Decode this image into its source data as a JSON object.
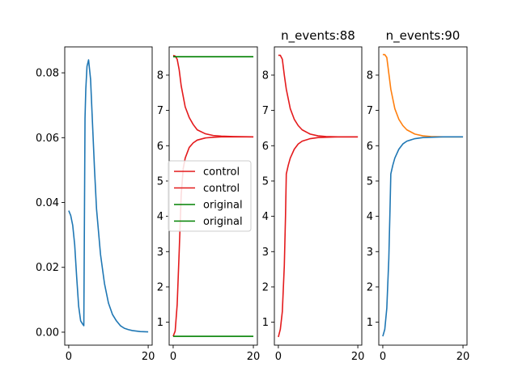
{
  "chart_data": [
    {
      "type": "line",
      "title": "",
      "xlim": [
        -1,
        21
      ],
      "ylim": [
        -0.004,
        0.088
      ],
      "xticks": [
        0,
        20
      ],
      "yticks": [
        0.0,
        0.02,
        0.04,
        0.06,
        0.08
      ],
      "ytick_labels": [
        "0.00",
        "0.02",
        "0.04",
        "0.06",
        "0.08"
      ],
      "series": [
        {
          "color": "#1f77b4",
          "x": [
            0,
            0.5,
            1,
            1.5,
            2,
            2.5,
            3,
            3.5,
            3.8,
            4,
            4.1,
            4.3,
            4.6,
            5,
            5.5,
            6,
            6.5,
            7,
            8,
            9,
            10,
            11,
            12,
            13,
            14,
            15,
            16,
            18,
            20
          ],
          "y": [
            0.0375,
            0.036,
            0.033,
            0.027,
            0.017,
            0.008,
            0.0035,
            0.0025,
            0.002,
            0.045,
            0.066,
            0.075,
            0.082,
            0.084,
            0.078,
            0.064,
            0.05,
            0.038,
            0.024,
            0.015,
            0.009,
            0.0055,
            0.0035,
            0.002,
            0.0012,
            0.0008,
            0.0005,
            0.0002,
            0.0001
          ]
        }
      ]
    },
    {
      "type": "line",
      "title": "",
      "xlim": [
        -1,
        21
      ],
      "ylim": [
        0.35,
        8.8
      ],
      "xticks": [
        0,
        20
      ],
      "yticks": [
        1,
        2,
        3,
        4,
        5,
        6,
        7,
        8
      ],
      "ytick_labels": [
        "1",
        "2",
        "3",
        "4",
        "5",
        "6",
        "7",
        "8"
      ],
      "legend": {
        "placement": "center-left",
        "entries": [
          {
            "label": "control",
            "color": "#e41a1c"
          },
          {
            "label": "control",
            "color": "#e41a1c"
          },
          {
            "label": "original",
            "color": "#008000"
          },
          {
            "label": "original",
            "color": "#008000"
          }
        ]
      },
      "series": [
        {
          "name": "control",
          "color": "#e41a1c",
          "x": [
            0,
            0.5,
            1,
            1.5,
            2,
            3,
            4,
            5,
            6,
            8,
            10,
            12,
            15,
            20
          ],
          "y": [
            8.56,
            8.54,
            8.45,
            8.15,
            7.7,
            7.1,
            6.8,
            6.6,
            6.45,
            6.34,
            6.29,
            6.27,
            6.26,
            6.25
          ]
        },
        {
          "name": "control",
          "color": "#e41a1c",
          "x": [
            0,
            0.5,
            1,
            1.5,
            2,
            2.5,
            3,
            4,
            5,
            6,
            8,
            10,
            12,
            15,
            20
          ],
          "y": [
            0.6,
            0.75,
            1.5,
            3.0,
            4.6,
            5.35,
            5.65,
            5.95,
            6.08,
            6.16,
            6.22,
            6.24,
            6.25,
            6.25,
            6.25
          ]
        },
        {
          "name": "original",
          "color": "#008000",
          "x": [
            0,
            20
          ],
          "y": [
            8.52,
            8.52
          ]
        },
        {
          "name": "original",
          "color": "#008000",
          "x": [
            0,
            20
          ],
          "y": [
            0.6,
            0.6
          ]
        }
      ]
    },
    {
      "type": "line",
      "title": "n_events:88",
      "xlim": [
        -1,
        21
      ],
      "ylim": [
        0.35,
        8.8
      ],
      "xticks": [
        0,
        20
      ],
      "yticks": [
        1,
        2,
        3,
        4,
        5,
        6,
        7,
        8
      ],
      "ytick_labels": [
        "1",
        "2",
        "3",
        "4",
        "5",
        "6",
        "7",
        "8"
      ],
      "series": [
        {
          "color": "#e41a1c",
          "x": [
            0,
            0.5,
            1,
            1.5,
            2,
            3,
            4,
            5,
            6,
            8,
            10,
            12,
            15,
            20
          ],
          "y": [
            8.56,
            8.56,
            8.45,
            8.0,
            7.6,
            7.05,
            6.75,
            6.57,
            6.45,
            6.33,
            6.28,
            6.26,
            6.25,
            6.25
          ]
        },
        {
          "color": "#e41a1c",
          "x": [
            0,
            0.5,
            1,
            1.5,
            1.8,
            2,
            2.5,
            3,
            4,
            5,
            6,
            8,
            10,
            12,
            15,
            20
          ],
          "y": [
            0.58,
            0.8,
            1.3,
            2.6,
            4.0,
            5.2,
            5.45,
            5.65,
            5.9,
            6.05,
            6.13,
            6.2,
            6.23,
            6.24,
            6.25,
            6.25
          ]
        }
      ]
    },
    {
      "type": "line",
      "title": "n_events:90",
      "xlim": [
        -1,
        21
      ],
      "ylim": [
        0.35,
        8.8
      ],
      "xticks": [
        0,
        20
      ],
      "yticks": [
        1,
        2,
        3,
        4,
        5,
        6,
        7,
        8
      ],
      "ytick_labels": [
        "1",
        "2",
        "3",
        "4",
        "5",
        "6",
        "7",
        "8"
      ],
      "series": [
        {
          "color": "#ff7f0e",
          "x": [
            0,
            0.5,
            1,
            1.5,
            2,
            3,
            4,
            5,
            6,
            8,
            10,
            12,
            15,
            20
          ],
          "y": [
            8.58,
            8.58,
            8.5,
            8.05,
            7.6,
            7.05,
            6.75,
            6.57,
            6.45,
            6.33,
            6.28,
            6.26,
            6.25,
            6.25
          ]
        },
        {
          "color": "#1f77b4",
          "x": [
            0,
            0.5,
            1,
            1.5,
            1.8,
            2,
            2.5,
            3,
            4,
            5,
            6,
            8,
            10,
            12,
            15,
            20
          ],
          "y": [
            0.6,
            0.8,
            1.4,
            2.8,
            4.2,
            5.2,
            5.45,
            5.65,
            5.9,
            6.05,
            6.13,
            6.2,
            6.23,
            6.24,
            6.25,
            6.25
          ]
        }
      ]
    }
  ]
}
